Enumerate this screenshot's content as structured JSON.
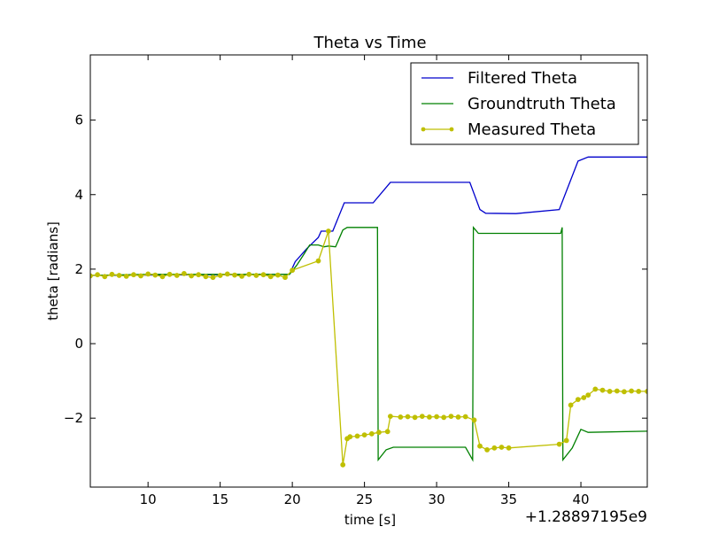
{
  "chart_data": {
    "type": "line",
    "title": "Theta vs Time",
    "xlabel": "time [s]",
    "ylabel": "theta [radians]",
    "x_offset_label": "+1.28897195e9",
    "xlim": [
      6,
      44.6
    ],
    "ylim": [
      -3.85,
      7.75
    ],
    "xticks": [
      10,
      15,
      20,
      25,
      30,
      35,
      40
    ],
    "yticks": [
      -2,
      0,
      2,
      4,
      6
    ],
    "legend_position": "upper-right",
    "series": [
      {
        "name": "Filtered Theta",
        "color": "#0000cc",
        "marker": false,
        "points": [
          [
            6,
            1.83
          ],
          [
            10,
            1.84
          ],
          [
            15,
            1.85
          ],
          [
            19.8,
            1.86
          ],
          [
            20.2,
            2.2
          ],
          [
            21,
            2.55
          ],
          [
            21.8,
            2.85
          ],
          [
            22,
            3.02
          ],
          [
            22.8,
            3.02
          ],
          [
            23.6,
            3.78
          ],
          [
            25.6,
            3.78
          ],
          [
            26.8,
            4.33
          ],
          [
            32.3,
            4.33
          ],
          [
            33,
            3.6
          ],
          [
            33.4,
            3.5
          ],
          [
            35.5,
            3.49
          ],
          [
            38.5,
            3.6
          ],
          [
            39.8,
            4.9
          ],
          [
            40.5,
            5.01
          ],
          [
            44.6,
            5.01
          ]
        ]
      },
      {
        "name": "Groundtruth Theta",
        "color": "#008000",
        "marker": false,
        "points": [
          [
            6,
            1.83
          ],
          [
            10,
            1.86
          ],
          [
            15,
            1.86
          ],
          [
            19.8,
            1.86
          ],
          [
            20.3,
            2.1
          ],
          [
            20.8,
            2.4
          ],
          [
            21.2,
            2.65
          ],
          [
            21.8,
            2.65
          ],
          [
            22.2,
            2.6
          ],
          [
            22.5,
            2.62
          ],
          [
            23,
            2.6
          ],
          [
            23.5,
            3.05
          ],
          [
            23.8,
            3.12
          ],
          [
            25.9,
            3.12
          ],
          [
            25.95,
            -3.12
          ],
          [
            26.5,
            -2.85
          ],
          [
            27,
            -2.78
          ],
          [
            32,
            -2.78
          ],
          [
            32.5,
            -3.12
          ],
          [
            32.55,
            3.12
          ],
          [
            32.9,
            2.96
          ],
          [
            38.6,
            2.96
          ],
          [
            38.7,
            3.12
          ],
          [
            38.75,
            -3.12
          ],
          [
            39.4,
            -2.8
          ],
          [
            40,
            -2.3
          ],
          [
            40.5,
            -2.38
          ],
          [
            44.6,
            -2.35
          ]
        ]
      },
      {
        "name": "Measured Theta",
        "color": "#bfbf00",
        "marker": true,
        "points": [
          [
            6,
            1.82
          ],
          [
            6.5,
            1.85
          ],
          [
            7,
            1.8
          ],
          [
            7.5,
            1.86
          ],
          [
            8,
            1.83
          ],
          [
            8.5,
            1.81
          ],
          [
            9,
            1.85
          ],
          [
            9.5,
            1.82
          ],
          [
            10,
            1.87
          ],
          [
            10.5,
            1.84
          ],
          [
            11,
            1.8
          ],
          [
            11.5,
            1.86
          ],
          [
            12,
            1.83
          ],
          [
            12.5,
            1.88
          ],
          [
            13,
            1.82
          ],
          [
            13.5,
            1.85
          ],
          [
            14,
            1.8
          ],
          [
            14.5,
            1.78
          ],
          [
            15,
            1.83
          ],
          [
            15.5,
            1.87
          ],
          [
            16,
            1.84
          ],
          [
            16.5,
            1.81
          ],
          [
            17,
            1.86
          ],
          [
            17.5,
            1.83
          ],
          [
            18,
            1.85
          ],
          [
            18.5,
            1.8
          ],
          [
            19,
            1.84
          ],
          [
            19.5,
            1.78
          ],
          [
            20,
            1.97
          ],
          [
            21.8,
            2.22
          ],
          [
            22.5,
            3.02
          ],
          [
            23.5,
            -3.25
          ],
          [
            23.8,
            -2.55
          ],
          [
            24,
            -2.5
          ],
          [
            24.5,
            -2.48
          ],
          [
            25,
            -2.45
          ],
          [
            25.5,
            -2.42
          ],
          [
            26,
            -2.38
          ],
          [
            26.6,
            -2.36
          ],
          [
            26.8,
            -1.95
          ],
          [
            27.5,
            -1.97
          ],
          [
            28,
            -1.96
          ],
          [
            28.5,
            -1.98
          ],
          [
            29,
            -1.95
          ],
          [
            29.5,
            -1.97
          ],
          [
            30,
            -1.96
          ],
          [
            30.5,
            -1.98
          ],
          [
            31,
            -1.95
          ],
          [
            31.5,
            -1.97
          ],
          [
            32,
            -1.96
          ],
          [
            32.6,
            -2.05
          ],
          [
            33,
            -2.75
          ],
          [
            33.5,
            -2.85
          ],
          [
            34,
            -2.8
          ],
          [
            34.5,
            -2.78
          ],
          [
            35,
            -2.8
          ],
          [
            38.5,
            -2.7
          ],
          [
            39,
            -2.6
          ],
          [
            39.3,
            -1.65
          ],
          [
            39.8,
            -1.5
          ],
          [
            40.2,
            -1.45
          ],
          [
            40.5,
            -1.38
          ],
          [
            41,
            -1.22
          ],
          [
            41.5,
            -1.25
          ],
          [
            42,
            -1.28
          ],
          [
            42.5,
            -1.27
          ],
          [
            43,
            -1.29
          ],
          [
            43.5,
            -1.27
          ],
          [
            44,
            -1.28
          ],
          [
            44.6,
            -1.28
          ]
        ]
      }
    ]
  }
}
